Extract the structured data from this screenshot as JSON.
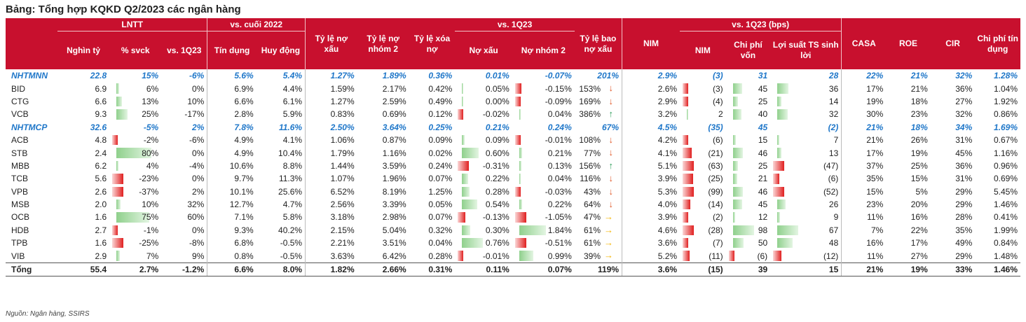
{
  "title": "Bảng: Tổng hợp KQKD Q2/2023 các ngân hàng",
  "source": "Nguồn: Ngân hàng, SSIRS",
  "header": {
    "groups": {
      "lntt": "LNTT",
      "vs_cuoi_2022": "vs. cuối 2022",
      "vs_1q23": "vs. 1Q23",
      "vs_1q23_bps": "vs. 1Q23 (bps)"
    },
    "cols": {
      "nghin_ty": "Nghìn tỷ",
      "svck": "% svck",
      "vs1q23": "vs. 1Q23",
      "tin_dung": "Tín dụng",
      "huy_dong": "Huy động",
      "ty_le_no_xau": "Tỷ lệ nợ xấu",
      "ty_le_no_nhom2": "Tỷ lệ nợ nhóm 2",
      "ty_le_xoa_no": "Tỷ lệ xóa nợ",
      "no_xau": "Nợ xấu",
      "no_nhom2": "Nợ nhóm 2",
      "ty_le_bao_no_xau": "Tỷ lệ bao nợ xấu",
      "nim": "NIM",
      "nim_bps": "NIM",
      "chi_phi_von": "Chi phí vốn",
      "loi_suat_ts": "Lợi suất TS sinh lời",
      "casa": "CASA",
      "roe": "ROE",
      "cir": "CIR",
      "chi_phi_tin_dung": "Chi phí tín dụng"
    }
  },
  "rows": [
    {
      "kind": "group",
      "name": "NHTMNN",
      "lntt": "22.8",
      "svck": "15%",
      "vs1q23": "-6%",
      "tin_dung": "5.6%",
      "huy_dong": "5.4%",
      "npl": "1.27%",
      "g2": "1.89%",
      "wo": "0.36%",
      "d_npl": "0.01%",
      "d_g2": "-0.07%",
      "llr": "201%",
      "nim": "2.9%",
      "d_nim": "(3)",
      "d_cof": "31",
      "d_yield": "28",
      "casa": "22%",
      "roe": "21%",
      "cir": "32%",
      "ccost": "1.28%"
    },
    {
      "kind": "bank",
      "name": "BID",
      "lntt": "6.9",
      "svck": "6%",
      "svck_v": 6,
      "vs1q23": "0%",
      "tin_dung": "6.9%",
      "huy_dong": "4.4%",
      "npl": "1.59%",
      "g2": "2.17%",
      "wo": "0.42%",
      "d_npl": "0.05%",
      "d_npl_v": 0.05,
      "d_g2": "-0.15%",
      "d_g2_v": -0.15,
      "llr": "153%",
      "arrow": "down",
      "nim": "2.6%",
      "d_nim": "(3)",
      "d_nim_v": -3,
      "d_cof": "45",
      "d_cof_v": 45,
      "d_yield": "36",
      "d_yield_v": 36,
      "casa": "17%",
      "roe": "21%",
      "cir": "36%",
      "ccost": "1.04%"
    },
    {
      "kind": "bank",
      "name": "CTG",
      "lntt": "6.6",
      "svck": "13%",
      "svck_v": 13,
      "vs1q23": "10%",
      "tin_dung": "6.6%",
      "huy_dong": "6.1%",
      "npl": "1.27%",
      "g2": "2.59%",
      "wo": "0.49%",
      "d_npl": "0.00%",
      "d_npl_v": 0.0,
      "d_g2": "-0.09%",
      "d_g2_v": -0.09,
      "llr": "169%",
      "arrow": "down",
      "nim": "2.9%",
      "d_nim": "(4)",
      "d_nim_v": -4,
      "d_cof": "25",
      "d_cof_v": 25,
      "d_yield": "14",
      "d_yield_v": 14,
      "casa": "19%",
      "roe": "18%",
      "cir": "27%",
      "ccost": "1.92%"
    },
    {
      "kind": "bank",
      "name": "VCB",
      "lntt": "9.3",
      "svck": "25%",
      "svck_v": 25,
      "vs1q23": "-17%",
      "tin_dung": "2.8%",
      "huy_dong": "5.9%",
      "npl": "0.83%",
      "g2": "0.69%",
      "wo": "0.12%",
      "d_npl": "-0.02%",
      "d_npl_v": -0.02,
      "d_g2": "0.04%",
      "d_g2_v": 0.04,
      "llr": "386%",
      "arrow": "up",
      "nim": "3.2%",
      "d_nim": "2",
      "d_nim_v": 2,
      "d_cof": "40",
      "d_cof_v": 40,
      "d_yield": "32",
      "d_yield_v": 32,
      "casa": "30%",
      "roe": "23%",
      "cir": "32%",
      "ccost": "0.86%"
    },
    {
      "kind": "group",
      "name": "NHTMCP",
      "lntt": "32.6",
      "svck": "-5%",
      "vs1q23": "2%",
      "tin_dung": "7.8%",
      "huy_dong": "11.6%",
      "npl": "2.50%",
      "g2": "3.64%",
      "wo": "0.25%",
      "d_npl": "0.21%",
      "d_g2": "0.24%",
      "llr": "67%",
      "nim": "4.5%",
      "d_nim": "(35)",
      "d_cof": "45",
      "d_yield": "(2)",
      "casa": "21%",
      "roe": "18%",
      "cir": "34%",
      "ccost": "1.69%"
    },
    {
      "kind": "bank",
      "name": "ACB",
      "lntt": "4.8",
      "svck": "-2%",
      "svck_v": -2,
      "vs1q23": "-6%",
      "tin_dung": "4.9%",
      "huy_dong": "4.1%",
      "npl": "1.06%",
      "g2": "0.87%",
      "wo": "0.09%",
      "d_npl": "0.09%",
      "d_npl_v": 0.09,
      "d_g2": "-0.01%",
      "d_g2_v": -0.01,
      "llr": "108%",
      "arrow": "down",
      "nim": "4.2%",
      "d_nim": "(6)",
      "d_nim_v": -6,
      "d_cof": "15",
      "d_cof_v": 15,
      "d_yield": "7",
      "d_yield_v": 7,
      "casa": "21%",
      "roe": "26%",
      "cir": "31%",
      "ccost": "0.67%"
    },
    {
      "kind": "bank",
      "name": "STB",
      "lntt": "2.4",
      "svck": "80%",
      "svck_v": 80,
      "vs1q23": "0%",
      "tin_dung": "4.9%",
      "huy_dong": "10.4%",
      "npl": "1.79%",
      "g2": "1.16%",
      "wo": "0.02%",
      "d_npl": "0.60%",
      "d_npl_v": 0.6,
      "d_g2": "0.21%",
      "d_g2_v": 0.21,
      "llr": "77%",
      "arrow": "down",
      "nim": "4.1%",
      "d_nim": "(21)",
      "d_nim_v": -21,
      "d_cof": "46",
      "d_cof_v": 46,
      "d_yield": "13",
      "d_yield_v": 13,
      "casa": "17%",
      "roe": "19%",
      "cir": "45%",
      "ccost": "1.16%"
    },
    {
      "kind": "bank",
      "name": "MBB",
      "lntt": "6.2",
      "svck": "4%",
      "svck_v": 4,
      "vs1q23": "-4%",
      "tin_dung": "10.6%",
      "huy_dong": "8.8%",
      "npl": "1.44%",
      "g2": "3.59%",
      "wo": "0.24%",
      "d_npl": "-0.31%",
      "d_npl_v": -0.31,
      "d_g2": "0.13%",
      "d_g2_v": 0.13,
      "llr": "156%",
      "arrow": "up",
      "nim": "5.1%",
      "d_nim": "(63)",
      "d_nim_v": -63,
      "d_cof": "25",
      "d_cof_v": 25,
      "d_yield": "(47)",
      "d_yield_v": -47,
      "casa": "37%",
      "roe": "25%",
      "cir": "36%",
      "ccost": "0.96%"
    },
    {
      "kind": "bank",
      "name": "TCB",
      "lntt": "5.6",
      "svck": "-23%",
      "svck_v": -23,
      "vs1q23": "0%",
      "tin_dung": "9.7%",
      "huy_dong": "11.3%",
      "npl": "1.07%",
      "g2": "1.96%",
      "wo": "0.07%",
      "d_npl": "0.22%",
      "d_npl_v": 0.22,
      "d_g2": "0.04%",
      "d_g2_v": 0.04,
      "llr": "116%",
      "arrow": "down",
      "nim": "3.9%",
      "d_nim": "(25)",
      "d_nim_v": -25,
      "d_cof": "21",
      "d_cof_v": 21,
      "d_yield": "(6)",
      "d_yield_v": -6,
      "casa": "35%",
      "roe": "15%",
      "cir": "31%",
      "ccost": "0.69%"
    },
    {
      "kind": "bank",
      "name": "VPB",
      "lntt": "2.6",
      "svck": "-37%",
      "svck_v": -37,
      "vs1q23": "2%",
      "tin_dung": "10.1%",
      "huy_dong": "25.6%",
      "npl": "6.52%",
      "g2": "8.19%",
      "wo": "1.25%",
      "d_npl": "0.28%",
      "d_npl_v": 0.28,
      "d_g2": "-0.03%",
      "d_g2_v": -0.03,
      "llr": "43%",
      "arrow": "down",
      "nim": "5.3%",
      "d_nim": "(99)",
      "d_nim_v": -99,
      "d_cof": "46",
      "d_cof_v": 46,
      "d_yield": "(52)",
      "d_yield_v": -52,
      "casa": "15%",
      "roe": "5%",
      "cir": "29%",
      "ccost": "5.45%"
    },
    {
      "kind": "bank",
      "name": "MSB",
      "lntt": "2.0",
      "svck": "10%",
      "svck_v": 10,
      "vs1q23": "32%",
      "tin_dung": "12.7%",
      "huy_dong": "4.7%",
      "npl": "2.56%",
      "g2": "3.39%",
      "wo": "0.05%",
      "d_npl": "0.54%",
      "d_npl_v": 0.54,
      "d_g2": "0.22%",
      "d_g2_v": 0.22,
      "llr": "64%",
      "arrow": "down",
      "nim": "4.0%",
      "d_nim": "(14)",
      "d_nim_v": -14,
      "d_cof": "45",
      "d_cof_v": 45,
      "d_yield": "26",
      "d_yield_v": 26,
      "casa": "23%",
      "roe": "20%",
      "cir": "29%",
      "ccost": "1.46%"
    },
    {
      "kind": "bank",
      "name": "OCB",
      "lntt": "1.6",
      "svck": "75%",
      "svck_v": 75,
      "vs1q23": "60%",
      "tin_dung": "7.1%",
      "huy_dong": "5.8%",
      "npl": "3.18%",
      "g2": "2.98%",
      "wo": "0.07%",
      "d_npl": "-0.13%",
      "d_npl_v": -0.13,
      "d_g2": "-1.05%",
      "d_g2_v": -1.05,
      "llr": "47%",
      "arrow": "right",
      "nim": "3.9%",
      "d_nim": "(2)",
      "d_nim_v": -2,
      "d_cof": "12",
      "d_cof_v": 12,
      "d_yield": "9",
      "d_yield_v": 9,
      "casa": "11%",
      "roe": "16%",
      "cir": "28%",
      "ccost": "0.41%"
    },
    {
      "kind": "bank",
      "name": "HDB",
      "lntt": "2.7",
      "svck": "-1%",
      "svck_v": -1,
      "vs1q23": "0%",
      "tin_dung": "9.3%",
      "huy_dong": "40.2%",
      "npl": "2.15%",
      "g2": "5.04%",
      "wo": "0.32%",
      "d_npl": "0.30%",
      "d_npl_v": 0.3,
      "d_g2": "1.84%",
      "d_g2_v": 1.84,
      "llr": "61%",
      "arrow": "right",
      "nim": "4.6%",
      "d_nim": "(28)",
      "d_nim_v": -28,
      "d_cof": "98",
      "d_cof_v": 98,
      "d_yield": "67",
      "d_yield_v": 67,
      "casa": "7%",
      "roe": "22%",
      "cir": "35%",
      "ccost": "1.99%"
    },
    {
      "kind": "bank",
      "name": "TPB",
      "lntt": "1.6",
      "svck": "-25%",
      "svck_v": -25,
      "vs1q23": "-8%",
      "tin_dung": "6.8%",
      "huy_dong": "-0.5%",
      "npl": "2.21%",
      "g2": "3.51%",
      "wo": "0.04%",
      "d_npl": "0.76%",
      "d_npl_v": 0.76,
      "d_g2": "-0.51%",
      "d_g2_v": -0.51,
      "llr": "61%",
      "arrow": "right",
      "nim": "3.6%",
      "d_nim": "(7)",
      "d_nim_v": -7,
      "d_cof": "50",
      "d_cof_v": 50,
      "d_yield": "48",
      "d_yield_v": 48,
      "casa": "16%",
      "roe": "17%",
      "cir": "49%",
      "ccost": "0.84%"
    },
    {
      "kind": "bank",
      "name": "VIB",
      "lntt": "2.9",
      "svck": "7%",
      "svck_v": 7,
      "vs1q23": "9%",
      "tin_dung": "0.8%",
      "huy_dong": "-0.5%",
      "npl": "3.63%",
      "g2": "6.42%",
      "wo": "0.28%",
      "d_npl": "-0.01%",
      "d_npl_v": -0.01,
      "d_g2": "0.99%",
      "d_g2_v": 0.99,
      "llr": "39%",
      "arrow": "right",
      "nim": "5.2%",
      "d_nim": "(11)",
      "d_nim_v": -11,
      "d_cof": "(6)",
      "d_cof_v": -6,
      "d_yield": "(12)",
      "d_yield_v": -12,
      "casa": "11%",
      "roe": "27%",
      "cir": "29%",
      "ccost": "1.48%"
    },
    {
      "kind": "total",
      "name": "Tổng",
      "lntt": "55.4",
      "svck": "2.7%",
      "vs1q23": "-1.2%",
      "tin_dung": "6.6%",
      "huy_dong": "8.0%",
      "npl": "1.82%",
      "g2": "2.66%",
      "wo": "0.31%",
      "d_npl": "0.11%",
      "d_g2": "0.07%",
      "llr": "119%",
      "nim": "3.6%",
      "d_nim": "(15)",
      "d_cof": "39",
      "d_yield": "15",
      "casa": "21%",
      "roe": "19%",
      "cir": "33%",
      "ccost": "1.46%"
    }
  ],
  "colors": {
    "header_bg": "#c8102e",
    "group_text": "#1f77c9",
    "bar_pos": "#8fd08c",
    "bar_neg": "#e02020",
    "arrow_down": "#e05a2a",
    "arrow_up": "#2f9e5b",
    "arrow_right": "#f5b400"
  }
}
